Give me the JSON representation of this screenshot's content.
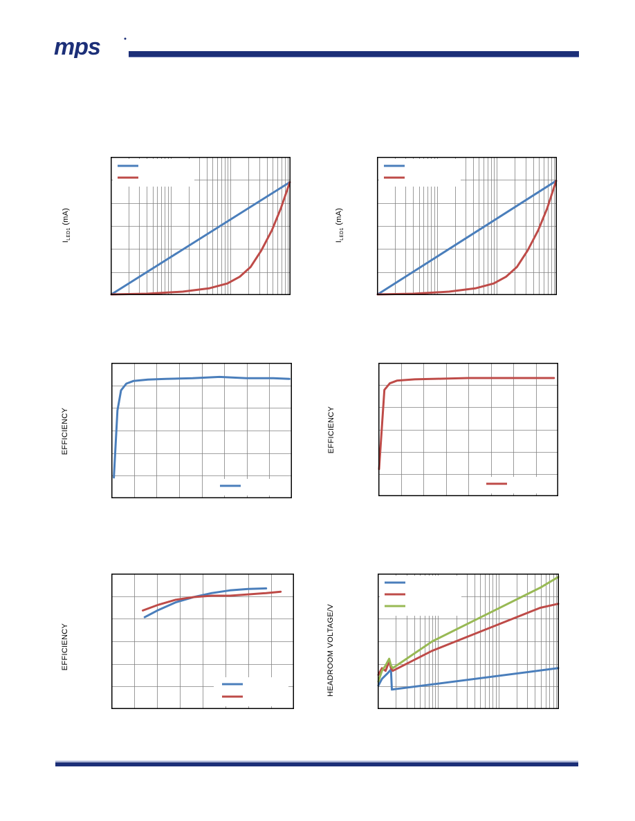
{
  "brand": {
    "logo_text": "mps"
  },
  "panels": [
    {
      "id": "p1",
      "ylabel_main": "I",
      "ylabel_sub": "LED1",
      "ylabel_rest": " (mA)"
    },
    {
      "id": "p2",
      "ylabel_main": "I",
      "ylabel_sub": "LED1",
      "ylabel_rest": " (mA)"
    },
    {
      "id": "p3",
      "ylabel_main": "EFFICIENCY",
      "ylabel_sub": "",
      "ylabel_rest": ""
    },
    {
      "id": "p4",
      "ylabel_main": "EFFICIENCY",
      "ylabel_sub": "",
      "ylabel_rest": ""
    },
    {
      "id": "p5",
      "ylabel_main": "EFFICIENCY",
      "ylabel_sub": "",
      "ylabel_rest": ""
    },
    {
      "id": "p6",
      "ylabel_main": "HEADROOM  VOLTAGE/V",
      "ylabel_sub": "",
      "ylabel_rest": ""
    }
  ],
  "colors": {
    "blue": "#4a7ebb",
    "red": "#be4b48",
    "green": "#98b954",
    "rule": "#1c2f78"
  },
  "chart_data": [
    {
      "type": "line",
      "grid": true,
      "grid_x": "log",
      "xlim": [
        0,
        1
      ],
      "ylim": [
        0,
        1
      ],
      "legend": "top-left",
      "series": [
        {
          "color": "#4a7ebb",
          "x": [
            0,
            1
          ],
          "y": [
            0,
            0.82
          ]
        },
        {
          "color": "#be4b48",
          "x": [
            0,
            0.2,
            0.4,
            0.55,
            0.65,
            0.72,
            0.78,
            0.84,
            0.9,
            0.95,
            1
          ],
          "y": [
            0,
            0.005,
            0.02,
            0.045,
            0.08,
            0.13,
            0.2,
            0.32,
            0.47,
            0.63,
            0.82
          ]
        }
      ]
    },
    {
      "type": "line",
      "grid": true,
      "grid_x": "log",
      "xlim": [
        0,
        1
      ],
      "ylim": [
        0,
        1
      ],
      "legend": "top-left",
      "series": [
        {
          "color": "#4a7ebb",
          "x": [
            0,
            1
          ],
          "y": [
            0,
            0.83
          ]
        },
        {
          "color": "#be4b48",
          "x": [
            0,
            0.2,
            0.4,
            0.55,
            0.65,
            0.72,
            0.78,
            0.84,
            0.9,
            0.95,
            1
          ],
          "y": [
            0,
            0.005,
            0.02,
            0.045,
            0.08,
            0.13,
            0.2,
            0.32,
            0.47,
            0.63,
            0.83
          ]
        }
      ]
    },
    {
      "type": "line",
      "grid": true,
      "xlim": [
        0,
        1
      ],
      "ylim": [
        0,
        1
      ],
      "legend": "bottom-right",
      "series": [
        {
          "color": "#4a7ebb",
          "x": [
            0.01,
            0.03,
            0.05,
            0.08,
            0.12,
            0.2,
            0.3,
            0.45,
            0.6,
            0.75,
            0.9,
            0.99
          ],
          "y": [
            0.15,
            0.65,
            0.8,
            0.85,
            0.87,
            0.88,
            0.885,
            0.89,
            0.9,
            0.89,
            0.89,
            0.885
          ]
        }
      ]
    },
    {
      "type": "line",
      "grid": true,
      "xlim": [
        0,
        1
      ],
      "ylim": [
        0,
        1
      ],
      "legend": "bottom-right",
      "series": [
        {
          "color": "#be4b48",
          "x": [
            0,
            0.03,
            0.06,
            0.1,
            0.2,
            0.35,
            0.5,
            0.7,
            0.9,
            0.98
          ],
          "y": [
            0.2,
            0.8,
            0.85,
            0.87,
            0.88,
            0.885,
            0.89,
            0.89,
            0.89,
            0.89
          ]
        }
      ]
    },
    {
      "type": "line",
      "grid": true,
      "xlim": [
        0,
        1
      ],
      "ylim": [
        0,
        1
      ],
      "legend": "bottom-right",
      "series": [
        {
          "color": "#4a7ebb",
          "x": [
            0.18,
            0.25,
            0.35,
            0.45,
            0.55,
            0.65,
            0.75,
            0.85
          ],
          "y": [
            0.68,
            0.73,
            0.79,
            0.83,
            0.86,
            0.88,
            0.89,
            0.895
          ]
        },
        {
          "color": "#be4b48",
          "x": [
            0.17,
            0.25,
            0.35,
            0.45,
            0.55,
            0.65,
            0.75,
            0.85,
            0.93
          ],
          "y": [
            0.73,
            0.77,
            0.81,
            0.83,
            0.84,
            0.84,
            0.85,
            0.86,
            0.87
          ]
        }
      ]
    },
    {
      "type": "line",
      "grid": true,
      "grid_x": "log",
      "xlim": [
        0,
        1
      ],
      "ylim": [
        0,
        1
      ],
      "legend": "top-left",
      "series": [
        {
          "color": "#4a7ebb",
          "x": [
            0,
            0.02,
            0.05,
            0.07,
            0.075,
            1
          ],
          "y": [
            0.17,
            0.22,
            0.26,
            0.29,
            0.14,
            0.3
          ]
        },
        {
          "color": "#be4b48",
          "x": [
            0,
            0.02,
            0.04,
            0.06,
            0.07,
            0.08,
            0.3,
            0.6,
            0.9,
            1
          ],
          "y": [
            0.25,
            0.3,
            0.28,
            0.35,
            0.3,
            0.28,
            0.43,
            0.59,
            0.75,
            0.78
          ]
        },
        {
          "color": "#98b954",
          "x": [
            0,
            0.02,
            0.04,
            0.06,
            0.07,
            0.08,
            0.3,
            0.6,
            0.9,
            1
          ],
          "y": [
            0.2,
            0.28,
            0.32,
            0.37,
            0.32,
            0.3,
            0.5,
            0.7,
            0.9,
            0.98
          ]
        }
      ]
    }
  ]
}
